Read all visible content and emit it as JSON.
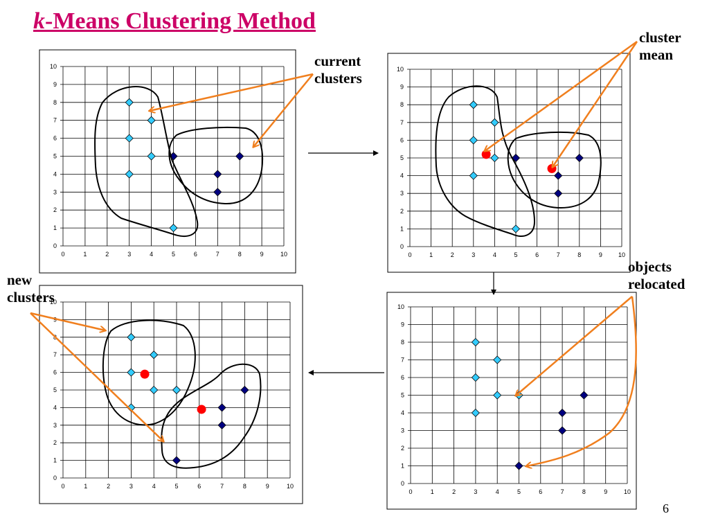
{
  "slide": {
    "title_k": "k",
    "title_rest": "-Means Clustering Method",
    "page_number": "6"
  },
  "labels": {
    "current_clusters": "current\nclusters",
    "cluster_mean": "cluster\nmean",
    "objects_relocated": "objects\nrelocated",
    "new_clusters": "new\nclusters"
  },
  "colors": {
    "title": "#cc0066",
    "arrow": "#f07f1e",
    "light_point": "#33ccff",
    "dark_point": "#000080",
    "mean_point": "#ff0000"
  },
  "chart_data": [
    {
      "type": "scatter",
      "name": "top-left",
      "xlim": [
        0,
        10
      ],
      "ylim": [
        0,
        10
      ],
      "grid": true,
      "xticks": [
        "0",
        "1",
        "2",
        "3",
        "4",
        "5",
        "6",
        "7",
        "8",
        "9",
        "10"
      ],
      "yticks": [
        "0",
        "1",
        "2",
        "3",
        "4",
        "5",
        "6",
        "7",
        "8",
        "9",
        "10"
      ],
      "light_points": [
        [
          3,
          8
        ],
        [
          4,
          7
        ],
        [
          3,
          6
        ],
        [
          4,
          5
        ],
        [
          3,
          4
        ],
        [
          5,
          1
        ]
      ],
      "dark_points": [
        [
          5,
          5
        ],
        [
          8,
          5
        ],
        [
          7,
          4
        ],
        [
          7,
          3
        ]
      ],
      "means": []
    },
    {
      "type": "scatter",
      "name": "top-right",
      "xlim": [
        0,
        10
      ],
      "ylim": [
        0,
        10
      ],
      "grid": true,
      "xticks": [
        "0",
        "1",
        "2",
        "3",
        "4",
        "5",
        "6",
        "7",
        "8",
        "9",
        "10"
      ],
      "yticks": [
        "0",
        "1",
        "2",
        "3",
        "4",
        "5",
        "6",
        "7",
        "8",
        "9",
        "10"
      ],
      "light_points": [
        [
          3,
          8
        ],
        [
          4,
          7
        ],
        [
          3,
          6
        ],
        [
          4,
          5
        ],
        [
          3,
          4
        ],
        [
          5,
          1
        ]
      ],
      "dark_points": [
        [
          5,
          5
        ],
        [
          8,
          5
        ],
        [
          7,
          4
        ],
        [
          7,
          3
        ]
      ],
      "means": [
        [
          3.6,
          5.2
        ],
        [
          6.7,
          4.4
        ]
      ]
    },
    {
      "type": "scatter",
      "name": "bottom-right",
      "xlim": [
        0,
        10
      ],
      "ylim": [
        0,
        10
      ],
      "grid": true,
      "xticks": [
        "0",
        "1",
        "2",
        "3",
        "4",
        "5",
        "6",
        "7",
        "8",
        "9",
        "10"
      ],
      "yticks": [
        "0",
        "1",
        "2",
        "3",
        "4",
        "5",
        "6",
        "7",
        "8",
        "9",
        "10"
      ],
      "light_points": [
        [
          3,
          8
        ],
        [
          4,
          7
        ],
        [
          3,
          6
        ],
        [
          4,
          5
        ],
        [
          5,
          5
        ],
        [
          3,
          4
        ]
      ],
      "dark_points": [
        [
          8,
          5
        ],
        [
          7,
          4
        ],
        [
          7,
          3
        ],
        [
          5,
          1
        ]
      ],
      "means": []
    },
    {
      "type": "scatter",
      "name": "bottom-left",
      "xlim": [
        0,
        10
      ],
      "ylim": [
        0,
        10
      ],
      "grid": true,
      "xticks": [
        "0",
        "1",
        "2",
        "3",
        "4",
        "5",
        "6",
        "7",
        "8",
        "9",
        "10"
      ],
      "yticks": [
        "0",
        "1",
        "2",
        "3",
        "4",
        "5",
        "6",
        "7",
        "8",
        "9",
        "10"
      ],
      "light_points": [
        [
          3,
          8
        ],
        [
          4,
          7
        ],
        [
          3,
          6
        ],
        [
          4,
          5
        ],
        [
          5,
          5
        ],
        [
          3,
          4
        ]
      ],
      "dark_points": [
        [
          8,
          5
        ],
        [
          7,
          4
        ],
        [
          7,
          3
        ],
        [
          5,
          1
        ]
      ],
      "means": [
        [
          3.6,
          5.9
        ],
        [
          6.1,
          3.9
        ]
      ]
    }
  ]
}
